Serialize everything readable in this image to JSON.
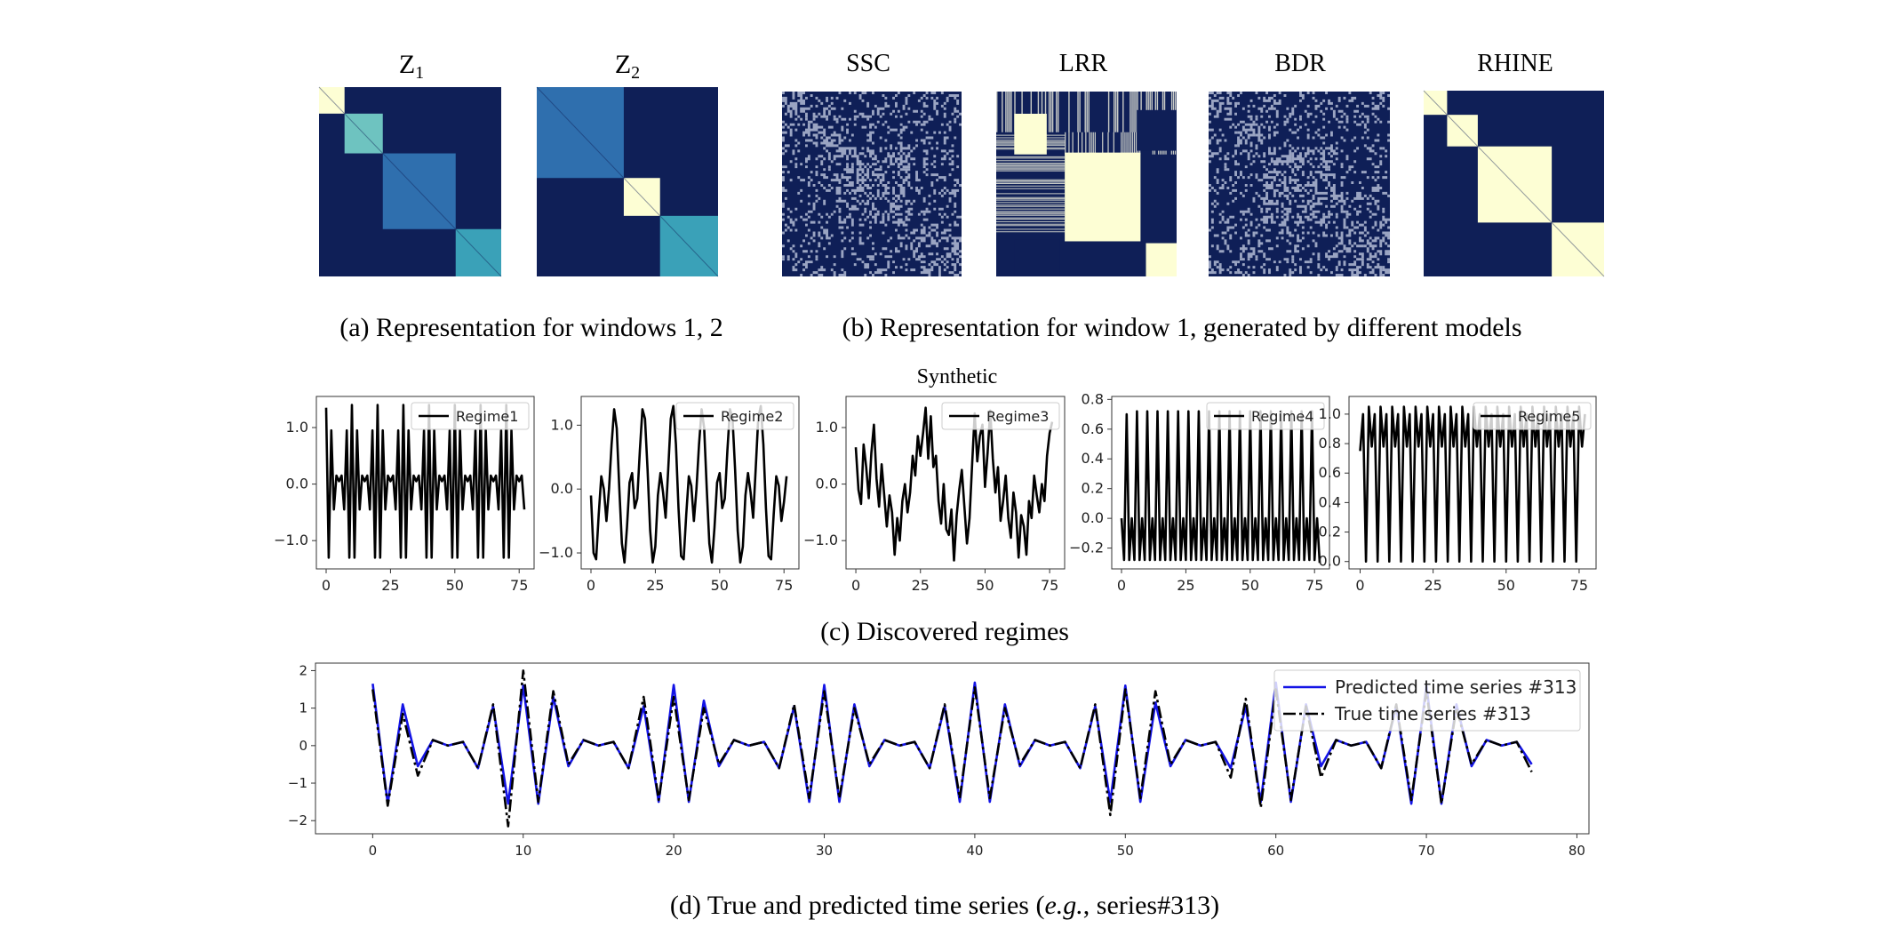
{
  "colors": {
    "navy": "#0f1f57",
    "cream": "#fdfed4",
    "mid_blue": "#2f6fae",
    "teal": "#3aa1b8",
    "light_teal": "#6ec3c0",
    "pred_line": "#1414e6",
    "true_line": "#000000"
  },
  "panel_a": {
    "caption": "(a) Representation for windows 1, 2",
    "matrices": [
      {
        "title_base": "Z",
        "title_sub": "1",
        "name": "z1",
        "blocks": [
          {
            "size": 0.14,
            "color": "cream"
          },
          {
            "size": 0.21,
            "color": "light_teal"
          },
          {
            "size": 0.4,
            "color": "mid_blue"
          },
          {
            "size": 0.25,
            "color": "teal"
          }
        ]
      },
      {
        "title_base": "Z",
        "title_sub": "2",
        "name": "z2",
        "blocks": [
          {
            "size": 0.48,
            "color": "mid_blue"
          },
          {
            "size": 0.2,
            "color": "cream"
          },
          {
            "size": 0.32,
            "color": "teal"
          }
        ]
      }
    ]
  },
  "panel_b": {
    "caption": "(b) Representation for window 1, generated by different models",
    "matrices": [
      {
        "title": "SSC",
        "name": "ssc"
      },
      {
        "title": "LRR",
        "name": "lrr"
      },
      {
        "title": "BDR",
        "name": "bdr"
      },
      {
        "title": "RHINE",
        "name": "rhine"
      }
    ]
  },
  "panel_c": {
    "title": "Synthetic",
    "caption": "(c) Discovered regimes"
  },
  "panel_d": {
    "caption_pre": "(d) True and predicted time series (",
    "caption_italic": "e.g.",
    "caption_post": ", series#313)"
  },
  "chart_data": [
    {
      "type": "line",
      "name": "regime1",
      "series": [
        {
          "name": "Regime1",
          "values": [
            1.35,
            -1.3,
            0.95,
            -0.45,
            0.15,
            0.05,
            0.15,
            -0.45,
            0.95,
            -1.3,
            1.4,
            -1.3,
            0.95,
            -0.45,
            0.15,
            0.05,
            0.15,
            -0.45,
            0.95,
            -1.3,
            1.4,
            -1.3,
            0.95,
            -0.45,
            0.15,
            0.05,
            0.15,
            -0.45,
            0.95,
            -1.3,
            1.4,
            -1.3,
            0.95,
            -0.45,
            0.15,
            0.05,
            0.15,
            -0.45,
            0.95,
            -1.3,
            1.4,
            -1.3,
            0.95,
            -0.45,
            0.15,
            0.05,
            0.15,
            -0.45,
            0.95,
            -1.3,
            1.4,
            -1.3,
            0.95,
            -0.45,
            0.15,
            0.05,
            0.15,
            -0.45,
            0.95,
            -1.3,
            1.4,
            -1.3,
            0.95,
            -0.45,
            0.15,
            0.05,
            0.15,
            -0.45,
            0.95,
            -1.3,
            1.4,
            -1.3,
            0.95,
            -0.45,
            0.15,
            0.05,
            0.15,
            -0.45
          ]
        }
      ],
      "x_ticks": [
        0,
        25,
        50,
        75
      ],
      "y_ticks": [
        1.0,
        0.0,
        -1.0
      ],
      "xlim": [
        -3.8,
        80.8
      ],
      "ylim": [
        -1.5,
        1.55
      ]
    },
    {
      "type": "line",
      "name": "regime2",
      "series": [
        {
          "name": "Regime2",
          "values": [
            -0.1,
            -1.0,
            -1.1,
            -0.4,
            0.2,
            0.0,
            -0.5,
            0.0,
            0.7,
            1.25,
            0.95,
            0.0,
            -0.85,
            -1.15,
            -0.6,
            0.1,
            0.25,
            -0.3,
            -0.15,
            0.6,
            1.25,
            1.1,
            0.3,
            -0.65,
            -1.15,
            -0.9,
            -0.1,
            0.25,
            -0.05,
            -0.45,
            0.3,
            1.1,
            1.3,
            0.7,
            -0.3,
            -1.05,
            -1.1,
            -0.4,
            0.2,
            0.05,
            -0.5,
            0.0,
            0.7,
            1.25,
            0.95,
            0.0,
            -0.85,
            -1.15,
            -0.6,
            0.1,
            0.25,
            -0.3,
            -0.15,
            0.6,
            1.25,
            1.1,
            0.3,
            -0.65,
            -1.15,
            -0.9,
            -0.1,
            0.25,
            -0.05,
            -0.45,
            0.3,
            1.1,
            1.3,
            0.7,
            -0.3,
            -1.05,
            -1.1,
            -0.4,
            0.2,
            0.05,
            -0.5,
            -0.2,
            0.2
          ]
        }
      ],
      "x_ticks": [
        0,
        25,
        50,
        75
      ],
      "y_ticks": [
        1.0,
        0.0,
        -1.0
      ],
      "xlim": [
        -3.8,
        80.8
      ],
      "ylim": [
        -1.25,
        1.45
      ]
    },
    {
      "type": "line",
      "name": "regime3",
      "series": [
        {
          "name": "Regime3",
          "values": [
            0.65,
            -0.1,
            -0.35,
            0.7,
            0.3,
            -0.25,
            0.55,
            1.05,
            0.1,
            -0.4,
            0.35,
            -0.2,
            -0.75,
            -0.2,
            -0.5,
            -1.25,
            -0.6,
            -1.0,
            -0.3,
            0.0,
            -0.5,
            -0.15,
            0.5,
            0.15,
            0.85,
            0.5,
            0.9,
            1.35,
            0.45,
            1.2,
            0.3,
            0.5,
            -0.3,
            -0.7,
            0.0,
            -0.8,
            -0.9,
            -0.45,
            -1.35,
            -0.55,
            -0.1,
            0.25,
            -0.4,
            -1.05,
            -0.6,
            0.35,
            1.25,
            0.4,
            0.85,
            1.05,
            -0.05,
            0.55,
            1.3,
            0.45,
            -0.15,
            0.3,
            -0.65,
            -0.3,
            0.15,
            -0.6,
            -0.95,
            -0.15,
            -0.5,
            -1.3,
            -0.55,
            -0.75,
            -1.25,
            -0.3,
            -0.6,
            0.15,
            -0.2,
            -0.5,
            0.0,
            -0.3,
            0.5,
            0.9,
            1.1
          ]
        }
      ],
      "x_ticks": [
        0,
        25,
        50,
        75
      ],
      "y_ticks": [
        1.0,
        0.0,
        -1.0
      ],
      "xlim": [
        -3.8,
        80.8
      ],
      "ylim": [
        -1.5,
        1.55
      ]
    },
    {
      "type": "line",
      "name": "regime4",
      "series": [
        {
          "name": "Regime4",
          "values": [
            0.0,
            -0.28,
            0.7,
            -0.28,
            0.0,
            -0.28,
            0.72,
            -0.28,
            0.0,
            -0.28,
            0.72,
            -0.28,
            0.0,
            -0.28,
            0.72,
            -0.28,
            0.0,
            -0.28,
            0.72,
            -0.28,
            0.0,
            -0.28,
            0.72,
            -0.28,
            0.0,
            -0.28,
            0.72,
            -0.28,
            0.0,
            -0.28,
            0.72,
            -0.28,
            0.0,
            -0.28,
            0.72,
            -0.28,
            0.0,
            -0.28,
            0.72,
            -0.28,
            0.0,
            -0.28,
            0.72,
            -0.28,
            0.0,
            -0.28,
            0.72,
            -0.28,
            0.0,
            -0.28,
            0.72,
            -0.28,
            0.0,
            -0.28,
            0.72,
            -0.28,
            0.0,
            -0.28,
            0.72,
            -0.28,
            0.0,
            -0.28,
            0.72,
            -0.28,
            0.0,
            -0.28,
            0.72,
            -0.28,
            0.0,
            -0.28,
            0.72,
            -0.28,
            0.0,
            -0.28,
            0.72,
            -0.28,
            0.0,
            -0.3
          ]
        }
      ],
      "x_ticks": [
        0,
        25,
        50,
        75
      ],
      "y_ticks": [
        0.8,
        0.6,
        0.4,
        0.2,
        0.0,
        -0.2
      ],
      "xlim": [
        -3.8,
        80.8
      ],
      "ylim": [
        -0.34,
        0.82
      ]
    },
    {
      "type": "line",
      "name": "regime5",
      "series": [
        {
          "name": "Regime5",
          "values": [
            0.75,
            1.0,
            0.0,
            1.05,
            0.78,
            1.0,
            0.0,
            1.05,
            0.78,
            1.0,
            0.0,
            1.05,
            0.78,
            1.0,
            0.0,
            1.05,
            0.78,
            1.0,
            0.0,
            1.05,
            0.78,
            1.0,
            0.0,
            1.05,
            0.78,
            1.0,
            0.0,
            1.05,
            0.78,
            1.0,
            0.0,
            1.05,
            0.78,
            1.0,
            0.0,
            1.05,
            0.78,
            1.0,
            0.0,
            1.05,
            0.78,
            1.0,
            0.0,
            1.05,
            0.78,
            1.0,
            0.0,
            1.05,
            0.78,
            1.0,
            0.0,
            1.05,
            0.78,
            1.0,
            0.0,
            1.05,
            0.78,
            1.0,
            0.0,
            1.05,
            0.78,
            1.0,
            0.0,
            1.05,
            0.78,
            1.0,
            0.0,
            1.05,
            0.78,
            1.0,
            0.0,
            1.05,
            0.78,
            1.0,
            0.0,
            1.05,
            0.78,
            1.0
          ]
        }
      ],
      "x_ticks": [
        0,
        25,
        50,
        75
      ],
      "y_ticks": [
        1.0,
        0.8,
        0.6,
        0.4,
        0.2,
        0.0
      ],
      "xlim": [
        -3.8,
        80.8
      ],
      "ylim": [
        -0.05,
        1.12
      ]
    },
    {
      "type": "line",
      "name": "prediction",
      "legend": "top-right",
      "series": [
        {
          "name": "Predicted time series #313",
          "style": "solid",
          "color": "pred_line",
          "values": [
            1.65,
            -1.55,
            1.1,
            -0.55,
            0.15,
            0.0,
            0.1,
            -0.6,
            1.05,
            -1.55,
            1.6,
            -1.55,
            1.3,
            -0.55,
            0.15,
            0.0,
            0.1,
            -0.6,
            1.05,
            -1.5,
            1.62,
            -1.5,
            1.2,
            -0.55,
            0.15,
            0.0,
            0.1,
            -0.6,
            1.05,
            -1.5,
            1.62,
            -1.5,
            1.1,
            -0.55,
            0.15,
            0.0,
            0.1,
            -0.6,
            1.05,
            -1.5,
            1.68,
            -1.5,
            1.1,
            -0.55,
            0.15,
            0.0,
            0.1,
            -0.6,
            1.05,
            -1.5,
            1.6,
            -1.5,
            1.15,
            -0.55,
            0.15,
            0.0,
            0.1,
            -0.6,
            1.05,
            -1.5,
            1.68,
            -1.5,
            1.1,
            -0.55,
            0.15,
            0.0,
            0.1,
            -0.6,
            1.05,
            -1.55,
            1.6,
            -1.55,
            1.1,
            -0.55,
            0.15,
            0.0,
            0.1,
            -0.5
          ]
        },
        {
          "name": "True time series #313",
          "style": "dashdot",
          "color": "true_line",
          "values": [
            1.5,
            -1.6,
            0.85,
            -0.8,
            0.15,
            0.0,
            0.1,
            -0.6,
            1.1,
            -2.15,
            2.0,
            -1.5,
            1.45,
            -0.5,
            0.15,
            0.0,
            0.1,
            -0.6,
            1.3,
            -1.45,
            1.3,
            -1.45,
            1.0,
            -0.5,
            0.15,
            0.0,
            0.1,
            -0.6,
            1.1,
            -1.4,
            1.45,
            -1.4,
            1.0,
            -0.5,
            0.15,
            0.0,
            0.1,
            -0.6,
            1.1,
            -1.4,
            1.55,
            -1.4,
            1.0,
            -0.5,
            0.15,
            0.0,
            0.1,
            -0.6,
            1.1,
            -1.85,
            1.5,
            -1.4,
            1.45,
            -0.5,
            0.15,
            0.0,
            0.1,
            -0.85,
            1.25,
            -1.65,
            1.5,
            -1.45,
            1.05,
            -0.85,
            0.15,
            0.0,
            0.1,
            -0.6,
            1.1,
            -1.45,
            1.45,
            -1.55,
            1.0,
            -0.5,
            0.15,
            0.0,
            0.1,
            -0.7
          ]
        }
      ],
      "x_ticks": [
        0,
        10,
        20,
        30,
        40,
        50,
        60,
        70,
        80
      ],
      "y_ticks": [
        2,
        1,
        0,
        -1,
        -2
      ],
      "xlim": [
        -3.8,
        80.8
      ],
      "ylim": [
        -2.35,
        2.2
      ]
    }
  ]
}
